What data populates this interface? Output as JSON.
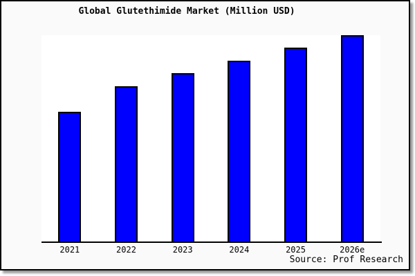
{
  "chart_data": {
    "type": "bar",
    "title": "Global Glutethimide Market (Million USD)",
    "categories": [
      "2021",
      "2022",
      "2023",
      "2024",
      "2025",
      "2026e"
    ],
    "values": [
      189,
      226,
      245,
      263,
      282,
      300
    ],
    "values_note": "y-axis has no tick labels; values are relative bar heights in pixels measured from the x-axis baseline",
    "xlabel": "",
    "ylabel": "",
    "legend": false,
    "grid": false,
    "source": "Source: Prof Research",
    "bar_color": "#0000ff",
    "bar_border_color": "#000000"
  },
  "style": {
    "figure_background": "#fafafa",
    "plot_background": "#ffffff",
    "text_color": "#000000",
    "frame_border_color": "#000000"
  }
}
